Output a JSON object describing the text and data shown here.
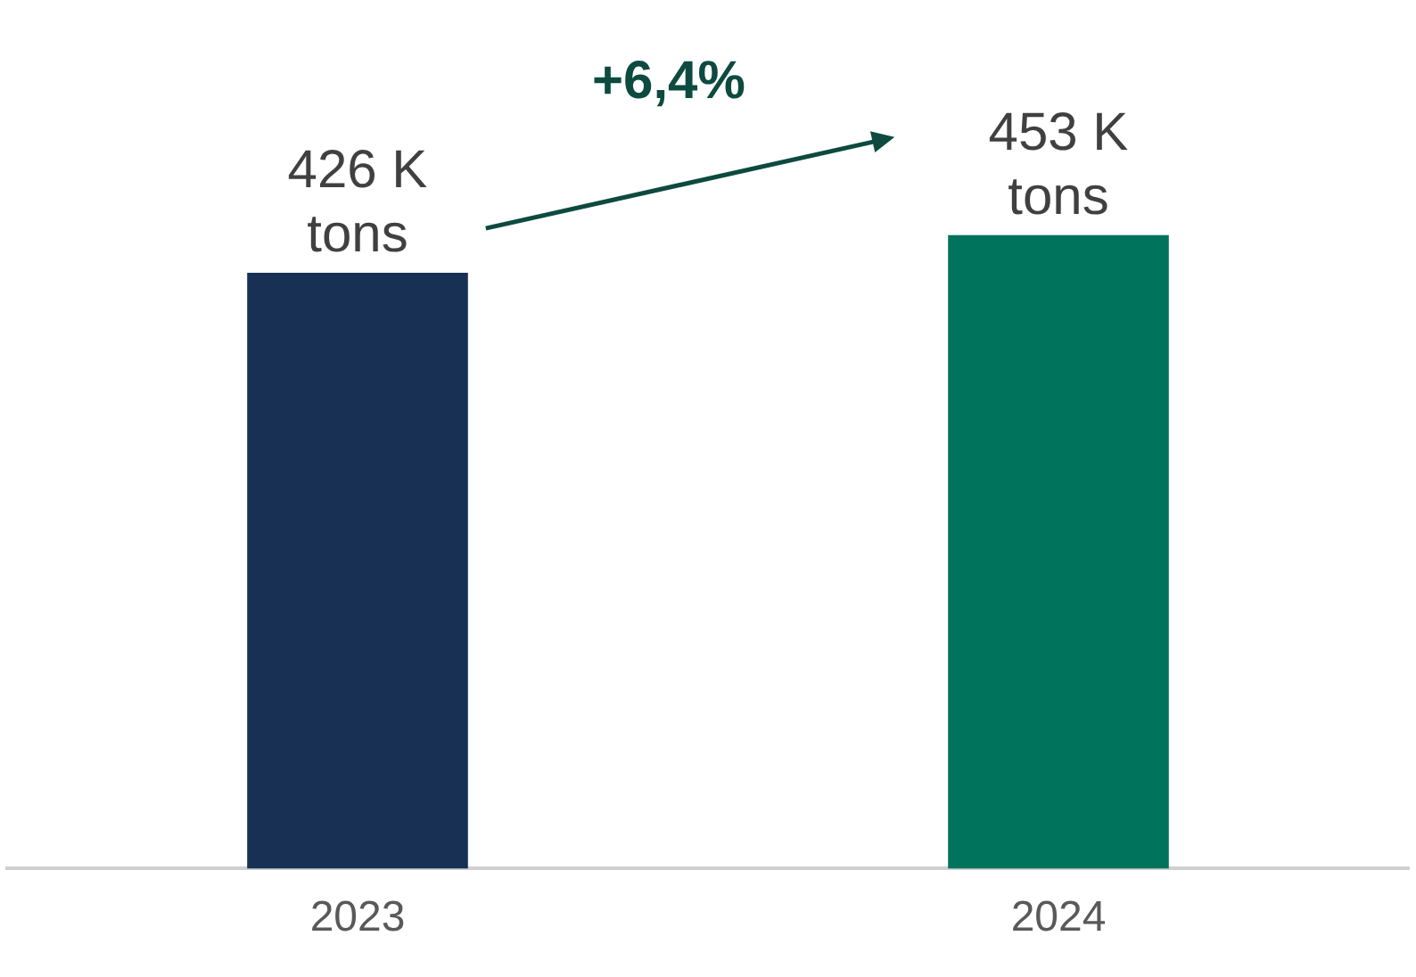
{
  "chart_data": {
    "type": "bar",
    "categories": [
      "2023",
      "2024"
    ],
    "values": [
      426,
      453
    ],
    "colors": [
      "#173054",
      "#00735c"
    ],
    "value_labels": [
      "426 K\ntons",
      "453 K\ntons"
    ],
    "annotations": [
      "+6,4%"
    ],
    "grid": false,
    "legend": false,
    "tick_labels": "x"
  }
}
